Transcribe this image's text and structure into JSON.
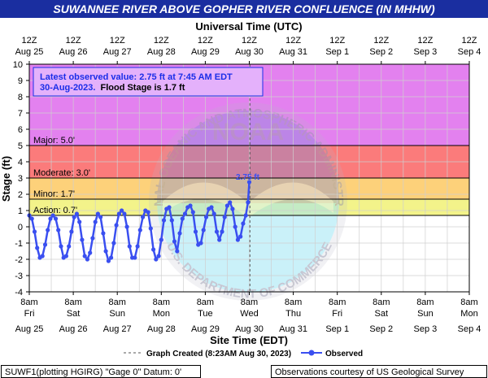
{
  "header": {
    "title": "SUWANNEE RIVER ABOVE GOPHER RIVER CONFLUENCE (IN MHHW)",
    "title_color": "#ffffff",
    "title_bg": "#1a2ea0",
    "top_axis_title": "Universal Time (UTC)"
  },
  "latest": {
    "line1": "Latest observed value: 2.75 ft at 7:45 AM EDT",
    "line2_date": "30-Aug-2023.",
    "line2_flood": "Flood Stage is 1.7 ft",
    "text_color": "#1a2ee8"
  },
  "watermark": {
    "outer_top": "NATIONAL OCEANIC AND ATMOSPHERIC ADMINISTRATION",
    "outer_bottom": "U.S. DEPARTMENT OF COMMERCE",
    "center": "NOAA"
  },
  "legend": {
    "created": "Graph Created (8:23AM Aug 30, 2023)",
    "observed": "Observed"
  },
  "footer": {
    "left": "SUWF1(plotting HGIRG) \"Gage 0\" Datum: 0'",
    "right": "Observations courtesy of US Geological Survey"
  },
  "chart_data": {
    "type": "line",
    "title": "SUWANNEE RIVER ABOVE GOPHER RIVER CONFLUENCE (IN MHHW)",
    "xlabel": "Site Time (EDT)",
    "ylabel": "Stage (ft)",
    "top_xlabel": "Universal Time (UTC)",
    "ylim": [
      -4,
      10
    ],
    "y_ticks": [
      -4,
      -3,
      -2,
      -1,
      0,
      1,
      2,
      3,
      4,
      5,
      6,
      7,
      8,
      9,
      10
    ],
    "x_ticks_bottom": [
      {
        "time": "8am",
        "day": "Fri",
        "date": "Aug 25"
      },
      {
        "time": "8am",
        "day": "Sat",
        "date": "Aug 26"
      },
      {
        "time": "8am",
        "day": "Sun",
        "date": "Aug 27"
      },
      {
        "time": "8am",
        "day": "Mon",
        "date": "Aug 28"
      },
      {
        "time": "8am",
        "day": "Tue",
        "date": "Aug 29"
      },
      {
        "time": "8am",
        "day": "Wed",
        "date": "Aug 30"
      },
      {
        "time": "8am",
        "day": "Thu",
        "date": "Aug 31"
      },
      {
        "time": "8am",
        "day": "Fri",
        "date": "Sep 1"
      },
      {
        "time": "8am",
        "day": "Sat",
        "date": "Sep 2"
      },
      {
        "time": "8am",
        "day": "Sun",
        "date": "Sep 3"
      },
      {
        "time": "8am",
        "day": "Mon",
        "date": "Sep 4"
      }
    ],
    "x_ticks_top": [
      {
        "time": "12Z",
        "date": "Aug 25"
      },
      {
        "time": "12Z",
        "date": "Aug 26"
      },
      {
        "time": "12Z",
        "date": "Aug 27"
      },
      {
        "time": "12Z",
        "date": "Aug 28"
      },
      {
        "time": "12Z",
        "date": "Aug 29"
      },
      {
        "time": "12Z",
        "date": "Aug 30"
      },
      {
        "time": "12Z",
        "date": "Aug 31"
      },
      {
        "time": "12Z",
        "date": "Sep 1"
      },
      {
        "time": "12Z",
        "date": "Sep 2"
      },
      {
        "time": "12Z",
        "date": "Sep 3"
      },
      {
        "time": "12Z",
        "date": "Sep 4"
      }
    ],
    "flood_categories": [
      {
        "label": "Action:",
        "value_label": "0.7'",
        "value": 0.7,
        "color": "#ffff66"
      },
      {
        "label": "Minor:",
        "value_label": "1.7'",
        "value": 1.7,
        "color": "#ffcc66"
      },
      {
        "label": "Moderate:",
        "value_label": "3.0'",
        "value": 3.0,
        "color": "#ff6666"
      },
      {
        "label": "Major:",
        "value_label": "5.0'",
        "value": 5.0,
        "color": "#cc66ff"
      }
    ],
    "band_colors": {
      "below_action": "#ffffff",
      "action": "#f3f38a",
      "minor": "#fdd17a",
      "moderate": "#fb7b7b",
      "major": "#e381ef"
    },
    "graph_created_day": 5.014,
    "series": [
      {
        "name": "Observed",
        "color": "#3a4ff0",
        "x_unit": "days since Aug 25 8am EDT",
        "x": [
          0.0,
          0.06,
          0.12,
          0.18,
          0.24,
          0.3,
          0.36,
          0.42,
          0.48,
          0.54,
          0.6,
          0.66,
          0.72,
          0.78,
          0.84,
          0.9,
          0.96,
          1.02,
          1.08,
          1.14,
          1.2,
          1.26,
          1.32,
          1.38,
          1.44,
          1.5,
          1.56,
          1.62,
          1.68,
          1.74,
          1.8,
          1.86,
          1.92,
          1.98,
          2.04,
          2.1,
          2.16,
          2.22,
          2.28,
          2.34,
          2.4,
          2.46,
          2.52,
          2.58,
          2.64,
          2.7,
          2.76,
          2.82,
          2.88,
          2.94,
          3.0,
          3.06,
          3.12,
          3.18,
          3.24,
          3.3,
          3.36,
          3.42,
          3.48,
          3.54,
          3.6,
          3.66,
          3.72,
          3.78,
          3.84,
          3.9,
          3.96,
          4.02,
          4.08,
          4.14,
          4.2,
          4.26,
          4.32,
          4.38,
          4.44,
          4.5,
          4.56,
          4.62,
          4.68,
          4.74,
          4.8,
          4.86,
          4.92,
          4.97,
          5.0
        ],
        "y": [
          0.7,
          0.5,
          -0.3,
          -1.3,
          -1.9,
          -1.8,
          -1.1,
          -0.2,
          0.5,
          0.7,
          0.5,
          -0.2,
          -1.2,
          -1.9,
          -1.8,
          -1.2,
          -0.3,
          0.6,
          0.8,
          0.3,
          -0.8,
          -1.8,
          -2.0,
          -1.6,
          -0.7,
          0.3,
          0.8,
          0.6,
          -0.4,
          -1.5,
          -2.1,
          -1.9,
          -1.0,
          0.1,
          0.8,
          1.0,
          0.8,
          0.0,
          -1.2,
          -1.9,
          -1.9,
          -1.2,
          -0.2,
          0.6,
          1.0,
          0.9,
          -0.1,
          -1.4,
          -2.0,
          -1.8,
          -0.8,
          0.4,
          1.1,
          1.2,
          0.4,
          -0.9,
          -1.5,
          -0.4,
          0.5,
          0.8,
          1.2,
          1.3,
          0.9,
          -0.3,
          -1.1,
          -1.0,
          -0.2,
          0.6,
          1.1,
          1.2,
          0.8,
          -0.3,
          -0.8,
          -0.3,
          0.6,
          1.3,
          1.5,
          1.1,
          0.0,
          -0.8,
          -0.6,
          0.2,
          0.7,
          1.5,
          2.75
        ]
      }
    ]
  }
}
